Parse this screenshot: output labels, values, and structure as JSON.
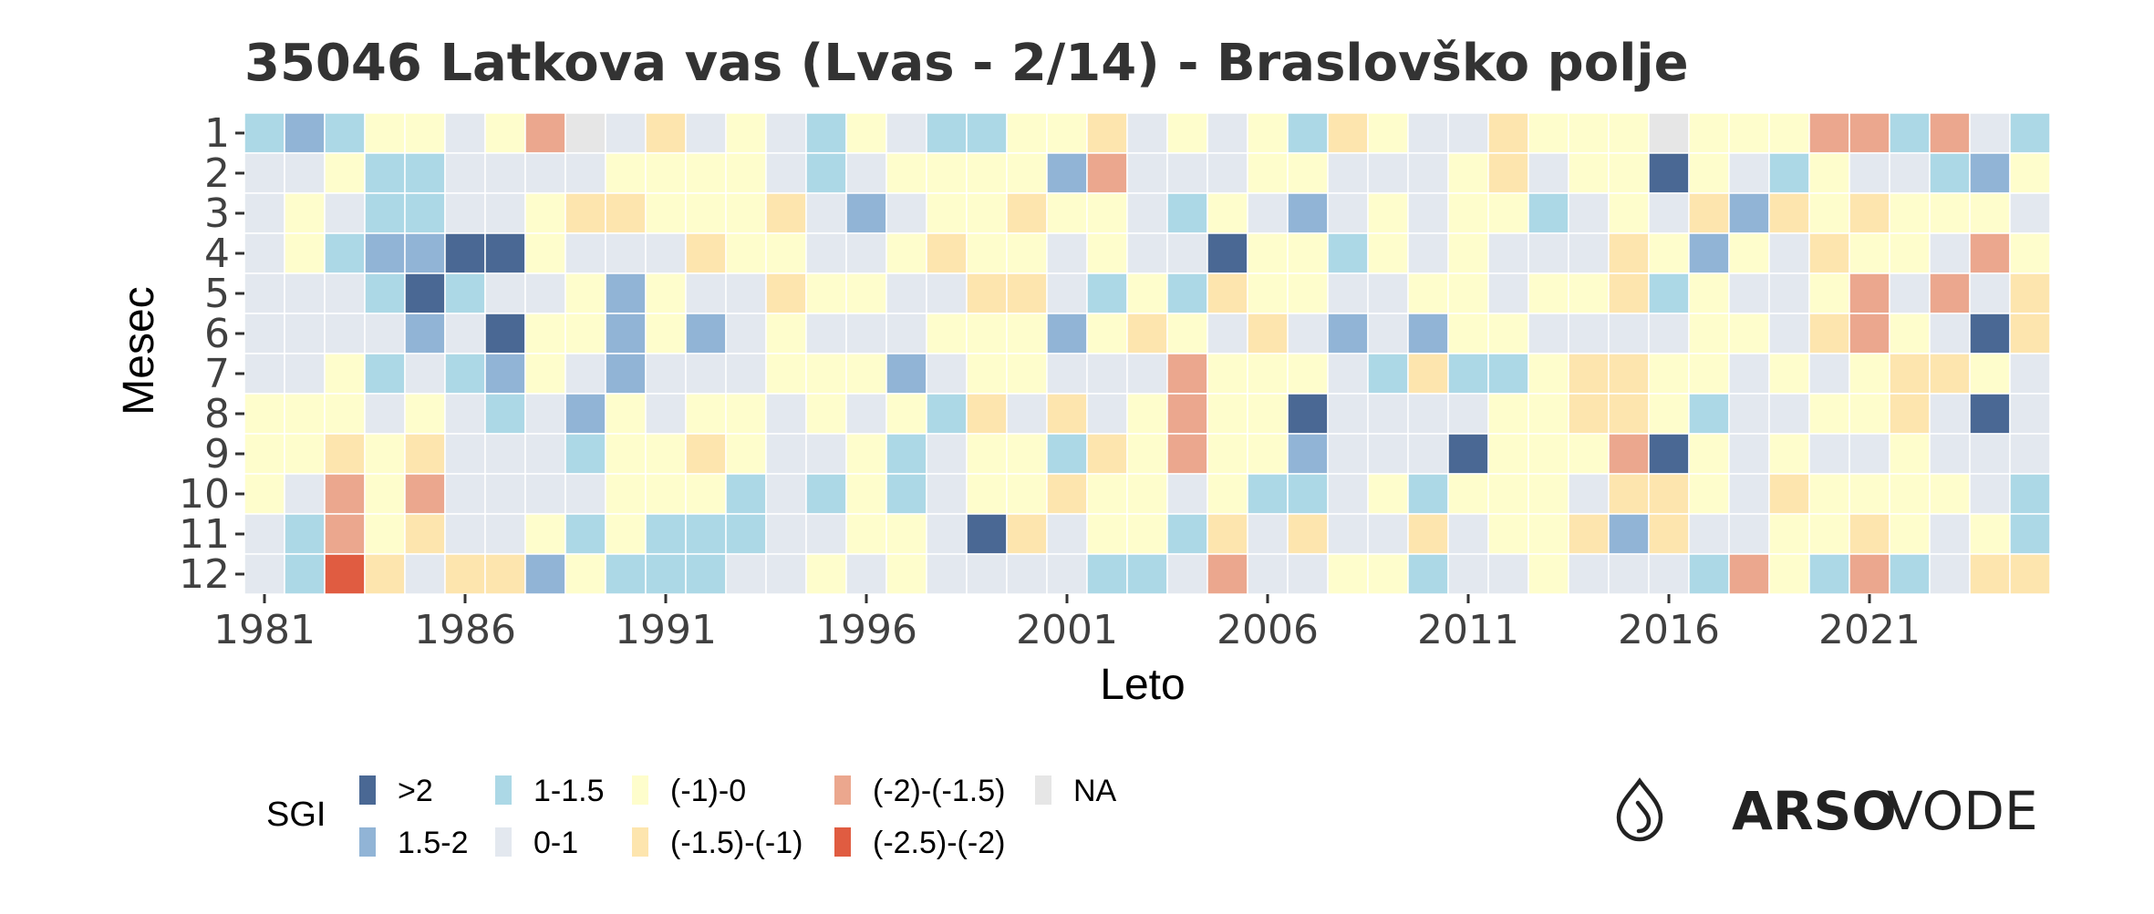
{
  "chart_data": {
    "type": "heatmap",
    "title": "35046 Latkova vas (Lvas - 2/14) - Braslovško polje",
    "xlabel": "Leto",
    "ylabel": "Mesec",
    "x_start": 1981,
    "x_end": 2025,
    "x_ticks": [
      "1981",
      "1986",
      "1991",
      "1996",
      "2001",
      "2006",
      "2011",
      "2016",
      "2021"
    ],
    "y_ticks": [
      "1",
      "2",
      "3",
      "4",
      "5",
      "6",
      "7",
      "8",
      "9",
      "10",
      "11",
      "12"
    ],
    "legend": {
      "title": "SGI",
      "placement": "bottom-left",
      "items": [
        {
          "label": ">2",
          "color": "#4a6894"
        },
        {
          "label": "1.5-2",
          "color": "#91b4d6"
        },
        {
          "label": "1-1.5",
          "color": "#acd8e6"
        },
        {
          "label": "0-1",
          "color": "#e3e8ef"
        },
        {
          "label": "(-1)-0",
          "color": "#fefdcc"
        },
        {
          "label": "(-1.5)-(-1)",
          "color": "#fde5ae"
        },
        {
          "label": "(-2)-(-1.5)",
          "color": "#eba78e"
        },
        {
          "label": "(-2.5)-(-2)",
          "color": "#e05c41"
        },
        {
          "label": "NA",
          "color": "#e6e6e6"
        }
      ]
    },
    "categories_key": {
      "0": ">2",
      "1": "1.5-2",
      "2": "1-1.5",
      "3": "0-1",
      "4": "(-1)-0",
      "5": "(-1.5)-(-1)",
      "6": "(-2)-(-1.5)",
      "7": "(-2.5)-(-2)",
      "8": "NA"
    },
    "rows_by_month": {
      "1": "212443468353432432244534342543354448444662632",
      "2": "334223333444432344441633344333453440432433214",
      "3": "343223345544453134454432431343442343515454443",
      "4": "342110043335443345443433044243433354143544364",
      "5": "333202334143354433553242544334434452433463635",
      "6": "333313044141343334441454353131443333443564305",
      "7": "334232143133344413443336444325224554434345543",
      "8": "444343231434434342535346440333344554233445303",
      "9": "445453332445433423442546441333044460434334333",
      "10": "436463333444232423445443422342444355435444432",
      "11": "326453342422233443053442535335344515334454342",
      "12": "327535514222334343333223633442334333264262355"
    }
  },
  "brand": {
    "bold": "ARSO",
    "light": "VODE",
    "icon": "water-drop-logo-icon"
  }
}
